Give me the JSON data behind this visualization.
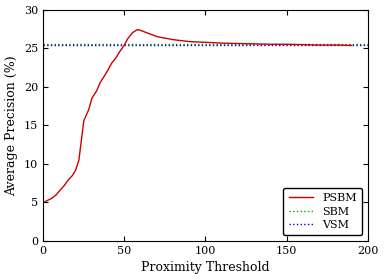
{
  "title": "",
  "xlabel": "Proximity Threshold",
  "ylabel": "Average Precision (%)",
  "xlim": [
    0,
    200
  ],
  "ylim": [
    0,
    30
  ],
  "xticks": [
    0,
    50,
    100,
    150,
    200
  ],
  "yticks": [
    0,
    5,
    10,
    15,
    20,
    25,
    30
  ],
  "sbm_value": 25.5,
  "vsm_value": 25.4,
  "psbm_x": [
    1,
    3,
    5,
    8,
    10,
    13,
    15,
    18,
    20,
    22,
    25,
    28,
    30,
    33,
    35,
    38,
    40,
    42,
    45,
    47,
    50,
    52,
    55,
    58,
    60,
    65,
    70,
    75,
    80,
    90,
    100,
    110,
    120,
    130,
    140,
    150,
    160,
    170,
    180,
    190
  ],
  "psbm_y": [
    5.1,
    5.3,
    5.5,
    6.0,
    6.5,
    7.2,
    7.8,
    8.5,
    9.2,
    10.5,
    15.6,
    17.0,
    18.5,
    19.5,
    20.5,
    21.5,
    22.2,
    23.0,
    23.8,
    24.5,
    25.4,
    26.2,
    27.0,
    27.4,
    27.3,
    26.9,
    26.5,
    26.3,
    26.1,
    25.85,
    25.75,
    25.65,
    25.6,
    25.55,
    25.5,
    25.5,
    25.45,
    25.4,
    25.4,
    25.35
  ],
  "psbm_color": "#cc0000",
  "sbm_color": "#00aa00",
  "vsm_color": "#0000bb",
  "line_width": 1.0,
  "legend_fontsize": 8,
  "tick_fontsize": 8,
  "label_fontsize": 9
}
